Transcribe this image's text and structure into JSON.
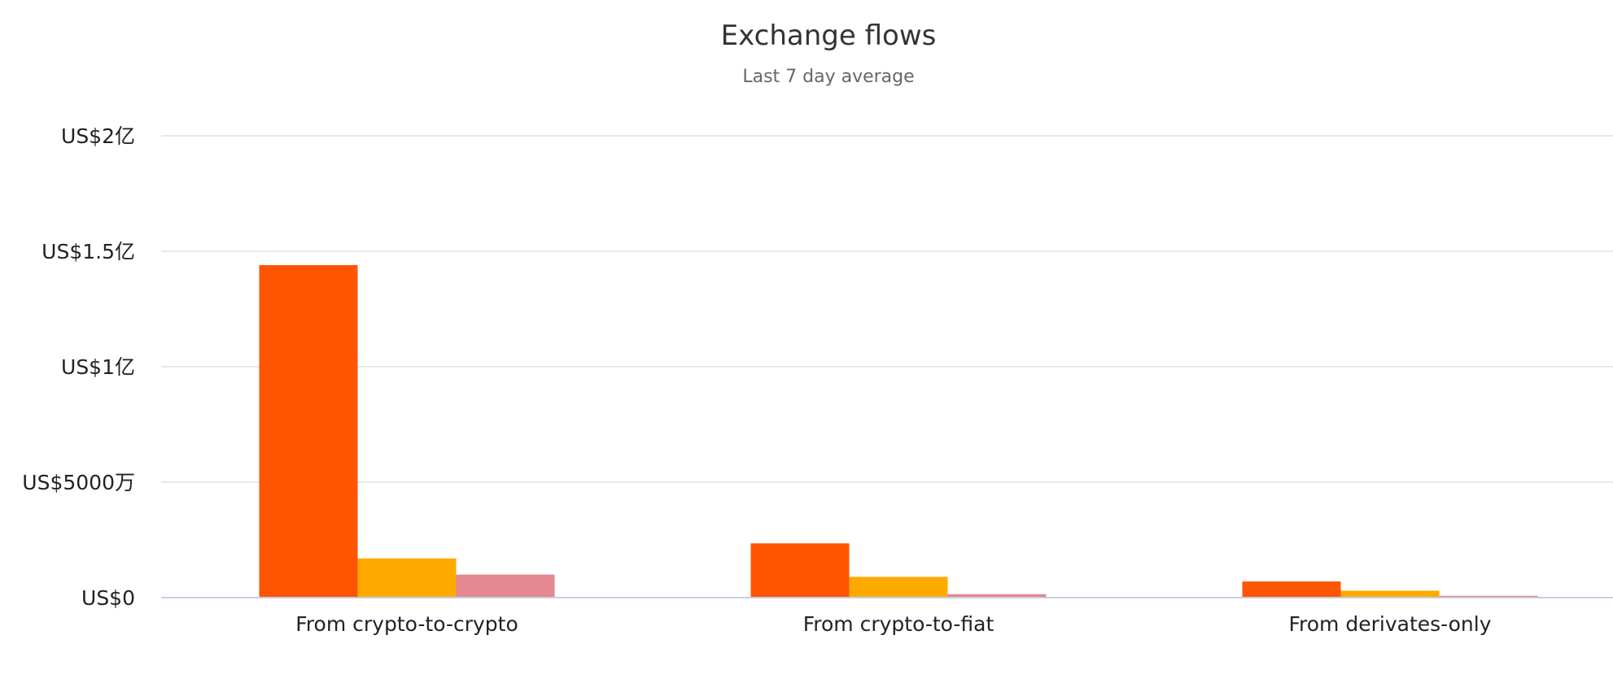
{
  "chart_data": {
    "type": "bar",
    "title": "Exchange flows",
    "subtitle": "Last 7 day average",
    "categories": [
      "From crypto-to-crypto",
      "From crypto-to-fiat",
      "From derivates-only"
    ],
    "series": [
      {
        "color": "#ff5500",
        "values": [
          144000000,
          23500000,
          7000000
        ]
      },
      {
        "color": "#ffaa00",
        "values": [
          17000000,
          9000000,
          3000000
        ]
      },
      {
        "color": "#e38891",
        "values": [
          10000000,
          1500000,
          800000
        ]
      }
    ],
    "ylim": [
      0,
      200000000
    ],
    "yticks": [
      {
        "value": 0,
        "label": "US$0"
      },
      {
        "value": 50000000,
        "label": "US$5000万"
      },
      {
        "value": 100000000,
        "label": "US$1亿"
      },
      {
        "value": 150000000,
        "label": "US$1.5亿"
      },
      {
        "value": 200000000,
        "label": "US$2亿"
      }
    ],
    "grid": true,
    "legend": "none"
  },
  "colors": {
    "grid": "#dde1e8",
    "axis": "#c8cfe0"
  }
}
